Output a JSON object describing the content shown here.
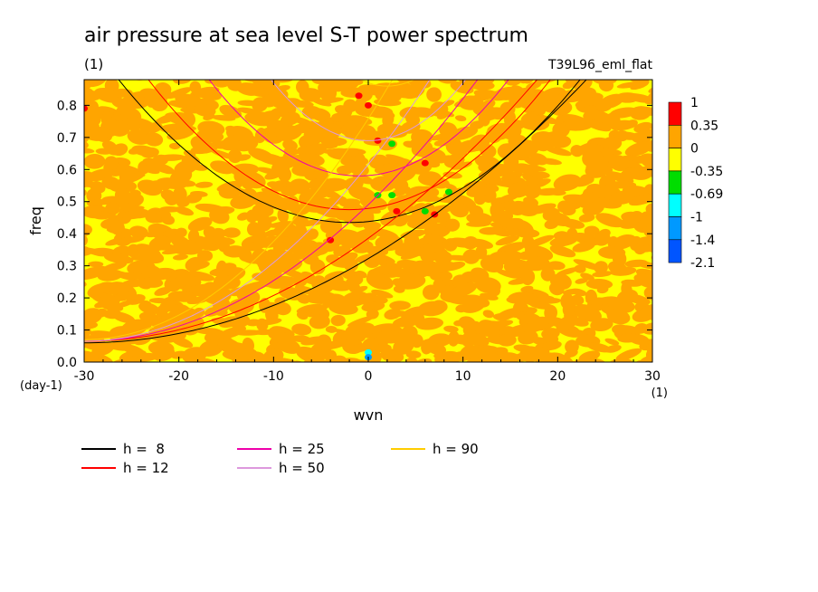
{
  "chart_data": {
    "type": "heatmap",
    "title": "air pressure at sea level S-T power spectrum",
    "units": "(1)",
    "experiment": "T39L96_eml_flat",
    "xlabel": "wvn",
    "ylabel": "freq",
    "x_units": "(1)",
    "y_units": "(day-1)",
    "xlim": [
      -30,
      30
    ],
    "ylim": [
      0,
      0.88
    ],
    "x_ticks": [
      -30,
      -20,
      -10,
      0,
      10,
      20,
      30
    ],
    "y_ticks": [
      0.0,
      0.1,
      0.2,
      0.3,
      0.4,
      0.5,
      0.6,
      0.7,
      0.8
    ],
    "x_tick_labels": [
      "-30",
      "-20",
      "-10",
      "0",
      "10",
      "20",
      "30"
    ],
    "y_tick_labels": [
      "0.0",
      "0.1",
      "0.2",
      "0.3",
      "0.4",
      "0.5",
      "0.6",
      "0.7",
      "0.8"
    ],
    "colorbar": {
      "labels": [
        "1",
        "0.35",
        "0",
        "-0.35",
        "-0.69",
        "-1",
        "-1.4",
        "-2.1"
      ],
      "colors": [
        "#ff0000",
        "#ffa500",
        "#ffff00",
        "#00dd00",
        "#00ffff",
        "#0099ff",
        "#0055ff"
      ]
    },
    "palette": {
      "orange": "#ffa500",
      "yellow": "#ffff00",
      "red": "#ff0000",
      "green": "#00dd00",
      "cyan": "#00ffff",
      "blue": "#0099ff"
    },
    "dispersion_curves": [
      {
        "name": "h =  8",
        "h": 8,
        "color": "#000000"
      },
      {
        "name": "h = 12",
        "h": 12,
        "color": "#ff0000"
      },
      {
        "name": "h = 25",
        "h": 25,
        "color": "#ee00aa"
      },
      {
        "name": "h = 50",
        "h": 50,
        "color": "#dd99dd"
      },
      {
        "name": "h = 90",
        "h": 90,
        "color": "#ffcc00"
      }
    ],
    "legend": {
      "placement": "bottom-left",
      "columns": 3
    },
    "spots": [
      {
        "wvn": -1,
        "freq": 0.83,
        "color": "#ff0000"
      },
      {
        "wvn": 0,
        "freq": 0.8,
        "color": "#ff0000"
      },
      {
        "wvn": 1,
        "freq": 0.69,
        "color": "#ff0000"
      },
      {
        "wvn": 2.5,
        "freq": 0.68,
        "color": "#00dd00"
      },
      {
        "wvn": 6,
        "freq": 0.62,
        "color": "#ff0000"
      },
      {
        "wvn": 1,
        "freq": 0.52,
        "color": "#00dd00"
      },
      {
        "wvn": 2.5,
        "freq": 0.52,
        "color": "#00dd00"
      },
      {
        "wvn": 8.5,
        "freq": 0.53,
        "color": "#00dd00"
      },
      {
        "wvn": 3,
        "freq": 0.47,
        "color": "#ff0000"
      },
      {
        "wvn": 6,
        "freq": 0.47,
        "color": "#00dd00"
      },
      {
        "wvn": 7,
        "freq": 0.46,
        "color": "#ff0000"
      },
      {
        "wvn": -4,
        "freq": 0.38,
        "color": "#ff0000"
      },
      {
        "wvn": -30,
        "freq": 0.79,
        "color": "#ff0000"
      },
      {
        "wvn": 0,
        "freq": 0.03,
        "color": "#00ffff"
      },
      {
        "wvn": 0,
        "freq": 0.015,
        "color": "#0099ff"
      }
    ]
  }
}
